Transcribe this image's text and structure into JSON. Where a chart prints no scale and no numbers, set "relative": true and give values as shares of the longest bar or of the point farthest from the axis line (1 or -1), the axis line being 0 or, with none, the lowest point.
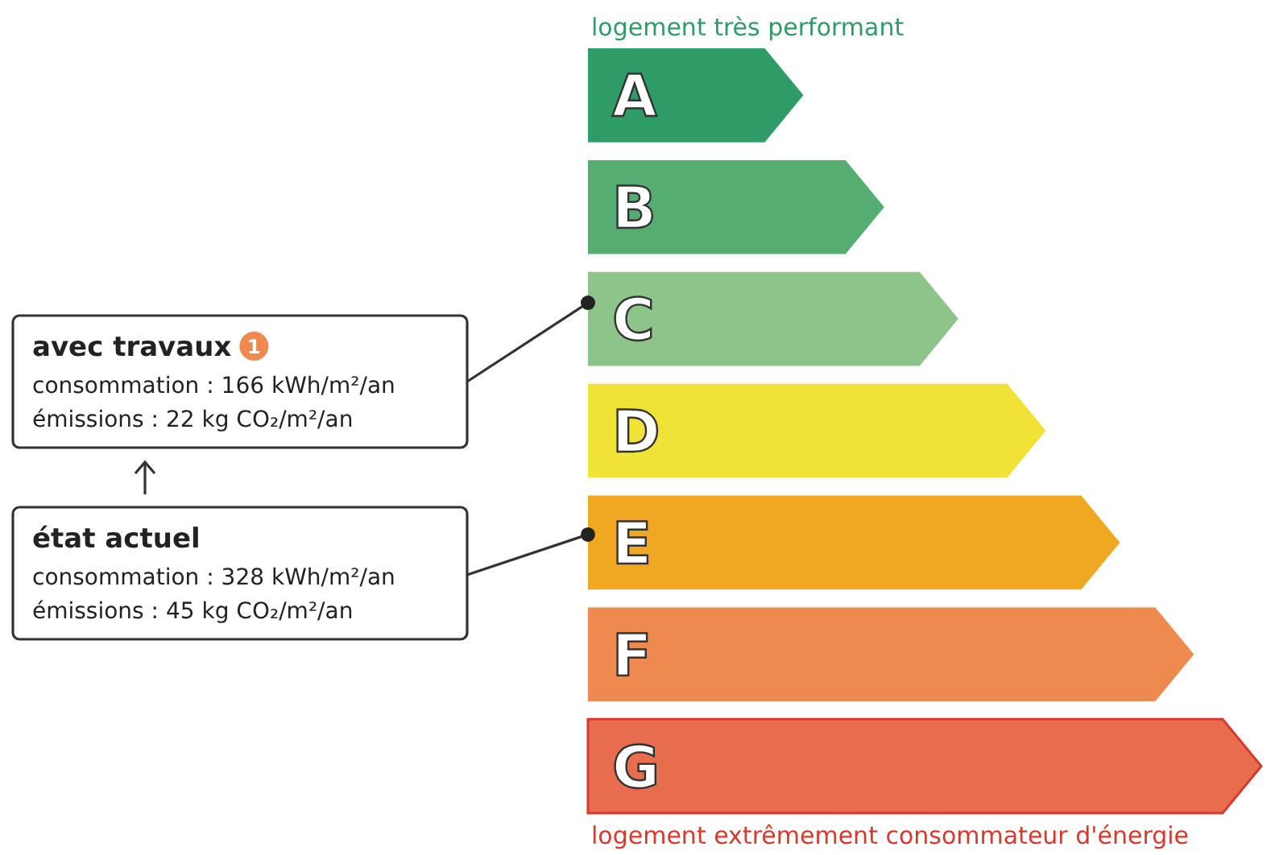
{
  "chart_data": {
    "type": "bar",
    "orientation": "horizontal",
    "relative": true,
    "title": "logement très performant",
    "categories": [
      "A",
      "B",
      "C",
      "D",
      "E",
      "F",
      "G"
    ],
    "values": [
      0.32,
      0.44,
      0.55,
      0.68,
      0.79,
      0.9,
      1
    ],
    "colors": [
      "#2f9c68",
      "#55ad72",
      "#8dc489",
      "#f0e236",
      "#f0a823",
      "#ee8a50",
      "#e86d4e"
    ],
    "annotations": [
      "avec travaux",
      "1",
      "consommation : 166 kWh/m²/an",
      "émissions : 22 kg CO₂/m²/an",
      "état actuel",
      "consommation : 328 kWh/m²/an",
      "émissions : 45 kg CO₂/m²/an",
      "logement extrêmement consommateur d'énergie"
    ]
  }
}
